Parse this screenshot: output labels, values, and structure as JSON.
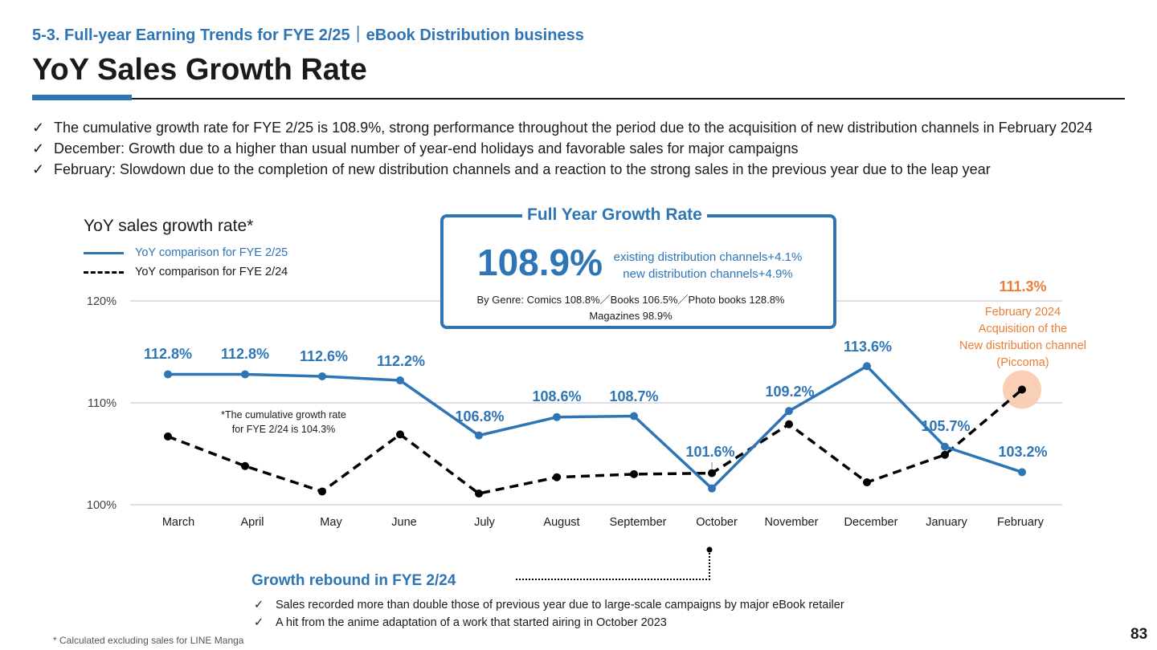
{
  "header": {
    "section": "5-3. Full-year Earning Trends for FYE 2/25｜eBook Distribution business",
    "title": "YoY Sales Growth Rate"
  },
  "bullets": [
    "The cumulative growth rate for FYE 2/25 is 108.9%, strong performance throughout the period due to the acquisition of new distribution channels in February 2024",
    "December: Growth due to a higher than usual number of year-end holidays and favorable sales for major campaigns",
    "February: Slowdown due to the completion of new distribution channels and a reaction to the strong sales in the previous year due to the leap year"
  ],
  "check_mark": "✓",
  "growth_box": {
    "title": "Full Year Growth Rate",
    "rate": "108.9%",
    "existing": "existing distribution channels+4.1%",
    "new": "new distribution channels+4.9%",
    "genre_line1": "By Genre: Comics 108.8%／Books 106.5%／Photo books 128.8%",
    "genre_line2": "Magazines 98.9%"
  },
  "chart_data": {
    "type": "line",
    "title": "YoY sales growth rate*",
    "categories": [
      "March",
      "April",
      "May",
      "June",
      "July",
      "August",
      "September",
      "October",
      "November",
      "December",
      "January",
      "February"
    ],
    "series": [
      {
        "name": "YoY comparison for FYE 2/25",
        "color": "#2e75b6",
        "style": "solid",
        "values": [
          112.8,
          112.8,
          112.6,
          112.2,
          106.8,
          108.6,
          108.7,
          101.6,
          109.2,
          113.6,
          105.7,
          103.2
        ],
        "labels": [
          "112.8%",
          "112.8%",
          "112.6%",
          "112.2%",
          "106.8%",
          "108.6%",
          "108.7%",
          "101.6%",
          "109.2%",
          "113.6%",
          "105.7%",
          "103.2%"
        ]
      },
      {
        "name": "YoY comparison for FYE 2/24",
        "color": "#000000",
        "style": "dashed",
        "values": [
          106.7,
          103.8,
          101.3,
          106.9,
          101.1,
          102.7,
          103.0,
          103.1,
          107.9,
          102.2,
          104.9,
          111.3
        ],
        "highlight_label": "111.3%"
      }
    ],
    "yticks": [
      100,
      110,
      120
    ],
    "ytick_labels": [
      "100%",
      "110%",
      "120%"
    ],
    "ylim": [
      100,
      120
    ],
    "grid": true,
    "legend_position": "top-left",
    "annotations": {
      "cumulative_note_line1": "*The cumulative growth rate",
      "cumulative_note_line2": "for FYE 2/24 is 104.3%",
      "feb_note": [
        "February 2024",
        "Acquisition of the",
        "New distribution channel",
        "(Piccoma)"
      ]
    },
    "accent_color": "#ed7d31"
  },
  "rebound": {
    "title": "Growth rebound in FYE 2/24",
    "items": [
      "Sales recorded more than double those of previous year due to large-scale campaigns by major eBook retailer",
      "A hit from the anime adaptation of a work that started airing in October 2023"
    ]
  },
  "footnote": "* Calculated excluding sales for LINE Manga",
  "page_number": "83"
}
